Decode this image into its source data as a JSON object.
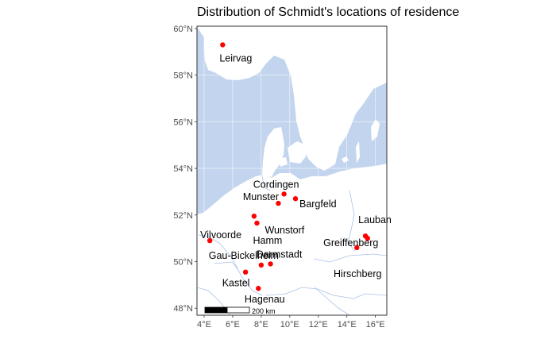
{
  "title": "Distribution of Schmidt's locations of residence",
  "colors": {
    "sea": "#c3d5ee",
    "land": "#ffffff",
    "grid": "#ffffff",
    "point": "#ff0000",
    "border": "#a9c2e6"
  },
  "axes": {
    "lon_range": [
      3.5,
      16.8
    ],
    "lat_range": [
      47.7,
      60.1
    ],
    "y_ticks": [
      {
        "value": 48,
        "label": "48°N"
      },
      {
        "value": 50,
        "label": "50°N"
      },
      {
        "value": 52,
        "label": "52°N"
      },
      {
        "value": 54,
        "label": "54°N"
      },
      {
        "value": 56,
        "label": "56°N"
      },
      {
        "value": 58,
        "label": "58°N"
      },
      {
        "value": 60,
        "label": "60°N"
      }
    ],
    "x_ticks": [
      {
        "value": 4,
        "label": "4°E"
      },
      {
        "value": 6,
        "label": "6°E"
      },
      {
        "value": 8,
        "label": "8°E"
      },
      {
        "value": 10,
        "label": "10°E"
      },
      {
        "value": 12,
        "label": "12°E"
      },
      {
        "value": 14,
        "label": "14°E"
      },
      {
        "value": 16,
        "label": "16°E"
      }
    ]
  },
  "scale_bar": {
    "label": "200 km"
  },
  "locations": [
    {
      "name": "Leirvag",
      "lon": 5.3,
      "lat": 59.3
    },
    {
      "name": "Cordingen",
      "lon": 9.6,
      "lat": 52.9
    },
    {
      "name": "Bargfeld",
      "lon": 10.4,
      "lat": 52.7
    },
    {
      "name": "Munster",
      "lon": 9.2,
      "lat": 52.5
    },
    {
      "name": "Wunstorf",
      "lon": 7.7,
      "lat": 51.65
    },
    {
      "name": "Hamm",
      "lon": 7.5,
      "lat": 51.95
    },
    {
      "name": "Vilvoorde",
      "lon": 4.4,
      "lat": 50.9
    },
    {
      "name": "Lauban",
      "lon": 15.3,
      "lat": 51.1
    },
    {
      "name": "Greiffenberg",
      "lon": 15.45,
      "lat": 51.0
    },
    {
      "name": "Hirschberg",
      "lon": 14.7,
      "lat": 50.6
    },
    {
      "name": "Gau-Bickelheim",
      "lon": 8.0,
      "lat": 49.85
    },
    {
      "name": "Darmstadt",
      "lon": 8.65,
      "lat": 49.9
    },
    {
      "name": "Kastel",
      "lon": 6.9,
      "lat": 49.55
    },
    {
      "name": "Hagenau",
      "lon": 7.8,
      "lat": 48.85
    }
  ]
}
